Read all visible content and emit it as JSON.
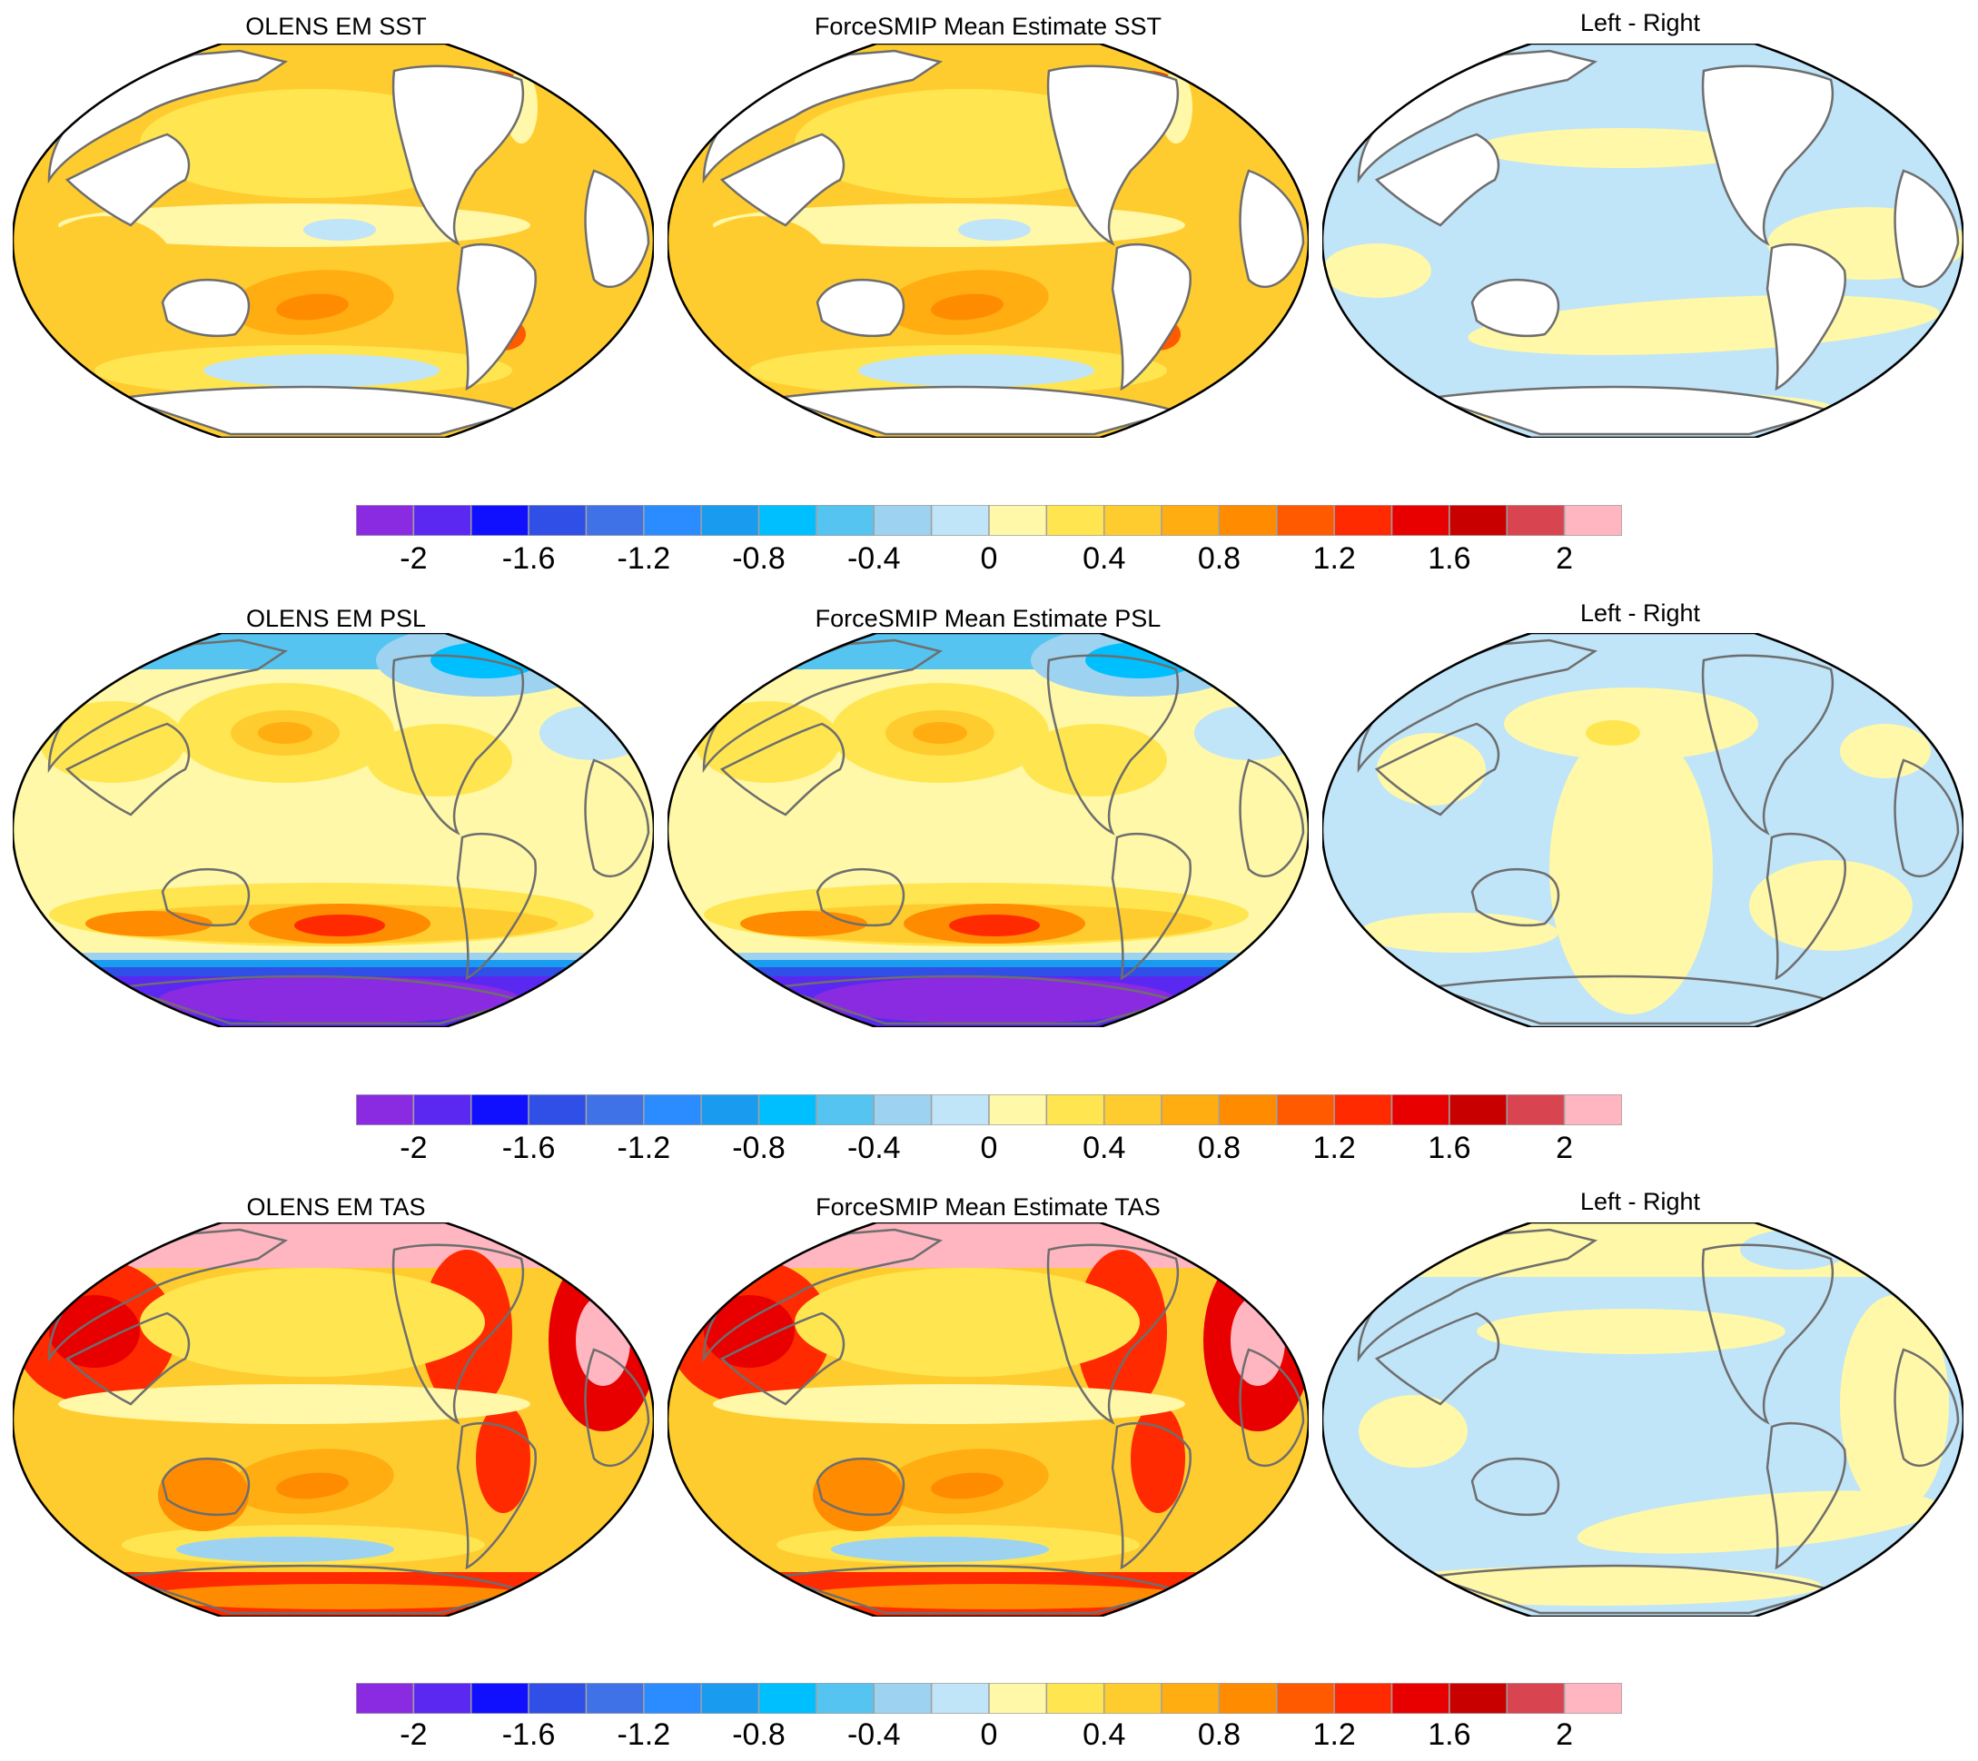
{
  "rows": [
    {
      "variable": "SST",
      "panels": [
        {
          "title": "OLENS EM SST",
          "pattern": "sst"
        },
        {
          "title": "ForceSMIP Mean Estimate SST",
          "pattern": "sst"
        },
        {
          "title": "Left - Right",
          "pattern": "diff_sst"
        }
      ]
    },
    {
      "variable": "PSL",
      "panels": [
        {
          "title": "OLENS EM PSL",
          "pattern": "psl"
        },
        {
          "title": "ForceSMIP Mean Estimate PSL",
          "pattern": "psl"
        },
        {
          "title": "Left - Right",
          "pattern": "diff_psl"
        }
      ]
    },
    {
      "variable": "TAS",
      "panels": [
        {
          "title": "OLENS EM TAS",
          "pattern": "tas"
        },
        {
          "title": "ForceSMIP Mean Estimate TAS",
          "pattern": "tas"
        },
        {
          "title": "Left - Right",
          "pattern": "diff_tas"
        }
      ]
    }
  ],
  "colorbar": {
    "colors": [
      "#8a2be2",
      "#5a28f0",
      "#1010ff",
      "#2f4fe6",
      "#3f72e6",
      "#2a8cff",
      "#199bef",
      "#00bfff",
      "#55c4f0",
      "#9dd3f0",
      "#c0e4f8",
      "#fff8a8",
      "#ffe650",
      "#ffcc30",
      "#ffad10",
      "#ff8c00",
      "#ff5a00",
      "#ff2a00",
      "#e80000",
      "#c80000",
      "#d84450",
      "#ffb6c1"
    ],
    "tick_labels": [
      "-2",
      "-1.6",
      "-1.2",
      "-0.8",
      "-0.4",
      "0",
      "0.4",
      "0.8",
      "1.2",
      "1.6",
      "2"
    ]
  }
}
